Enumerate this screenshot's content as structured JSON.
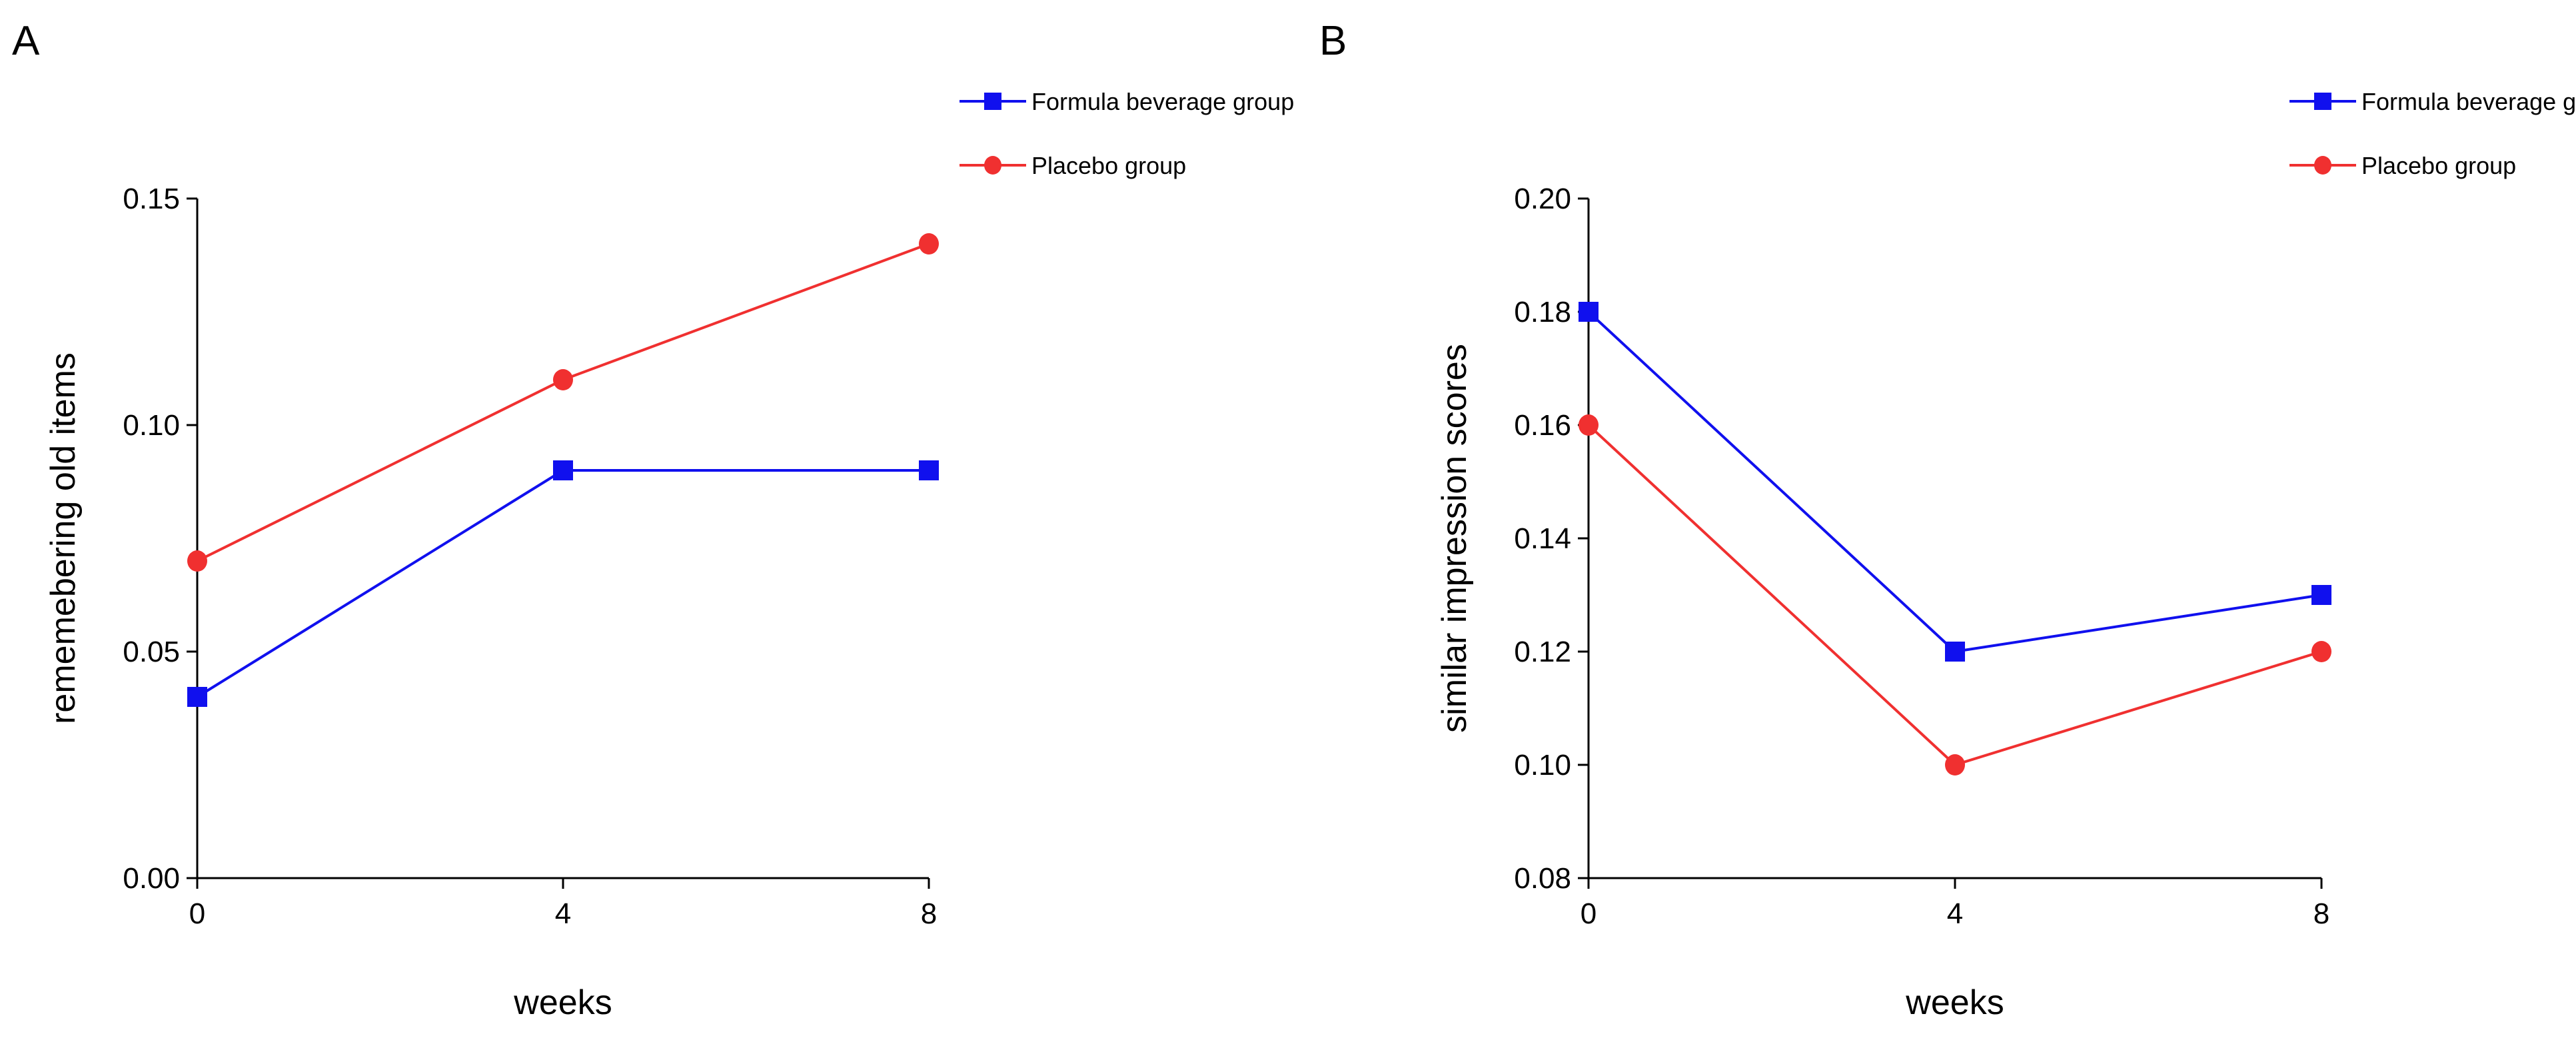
{
  "chart_data": [
    {
      "panel_label": "A",
      "type": "line",
      "title": "",
      "xlabel": "weeks",
      "ylabel": "rememebering old items",
      "x": [
        0,
        4,
        8
      ],
      "x_ticks": [
        "0",
        "4",
        "8"
      ],
      "xlim": [
        0,
        8
      ],
      "ylim": [
        0.0,
        0.15
      ],
      "y_ticks": [
        "0.00",
        "0.05",
        "0.10",
        "0.15"
      ],
      "y_tick_values": [
        0.0,
        0.05,
        0.1,
        0.15
      ],
      "grid": false,
      "legend_position": "top-right",
      "series": [
        {
          "name": "Formula beverage group",
          "color": "#1010ee",
          "marker": "square",
          "values": [
            0.04,
            0.09,
            0.09
          ]
        },
        {
          "name": "Placebo group",
          "color": "#f03030",
          "marker": "circle",
          "values": [
            0.07,
            0.11,
            0.14
          ]
        }
      ]
    },
    {
      "panel_label": "B",
      "type": "line",
      "title": "",
      "xlabel": "weeks",
      "ylabel": "similar impression scores",
      "x": [
        0,
        4,
        8
      ],
      "x_ticks": [
        "0",
        "4",
        "8"
      ],
      "xlim": [
        0,
        8
      ],
      "ylim": [
        0.08,
        0.2
      ],
      "y_ticks": [
        "0.08",
        "0.10",
        "0.12",
        "0.14",
        "0.16",
        "0.18",
        "0.20"
      ],
      "y_tick_values": [
        0.08,
        0.1,
        0.12,
        0.14,
        0.16,
        0.18,
        0.2
      ],
      "grid": false,
      "legend_position": "top-right",
      "series": [
        {
          "name": "Formula beverage group",
          "color": "#1010ee",
          "marker": "square",
          "values": [
            0.18,
            0.12,
            0.13
          ]
        },
        {
          "name": "Placebo group",
          "color": "#f03030",
          "marker": "circle",
          "values": [
            0.16,
            0.1,
            0.12
          ]
        }
      ]
    }
  ]
}
